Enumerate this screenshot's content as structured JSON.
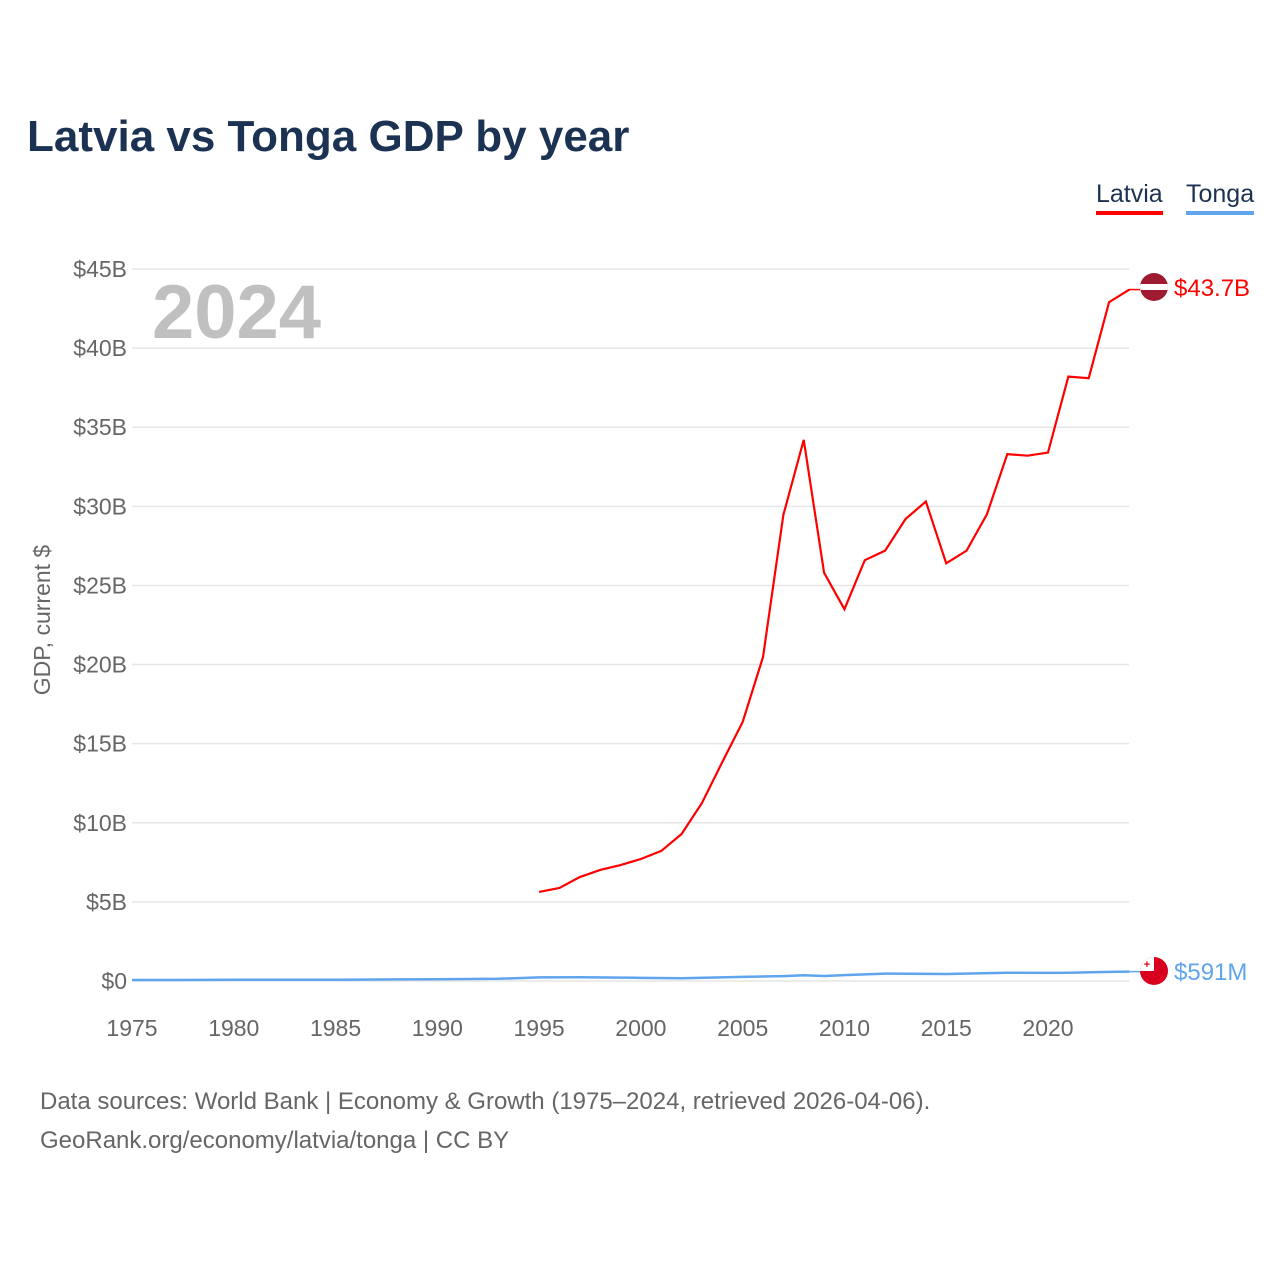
{
  "chart_data": {
    "type": "line",
    "title": "Latvia vs Tonga GDP by year",
    "ylabel": "GDP, current $",
    "xlabel": "",
    "xlim": [
      1975,
      2024
    ],
    "ylim": [
      0,
      45
    ],
    "y_units": "billion USD",
    "grid": true,
    "legend_placement": "top-right",
    "year_watermark": "2024",
    "x_ticks": [
      "1975",
      "1980",
      "1985",
      "1990",
      "1995",
      "2000",
      "2005",
      "2010",
      "2015",
      "2020"
    ],
    "y_ticks": [
      {
        "v": 0,
        "label": "$0"
      },
      {
        "v": 5,
        "label": "$5B"
      },
      {
        "v": 10,
        "label": "$10B"
      },
      {
        "v": 15,
        "label": "$15B"
      },
      {
        "v": 20,
        "label": "$20B"
      },
      {
        "v": 25,
        "label": "$25B"
      },
      {
        "v": 30,
        "label": "$30B"
      },
      {
        "v": 35,
        "label": "$35B"
      },
      {
        "v": 40,
        "label": "$40B"
      },
      {
        "v": 45,
        "label": "$45B"
      }
    ],
    "series": [
      {
        "name": "Latvia",
        "color": "#ff0000",
        "end_label": "$43.7B",
        "flag": "latvia-flag",
        "x": [
          1995,
          1996,
          1997,
          1998,
          1999,
          2000,
          2001,
          2002,
          2003,
          2004,
          2005,
          2006,
          2007,
          2008,
          2009,
          2010,
          2011,
          2012,
          2013,
          2014,
          2015,
          2016,
          2017,
          2018,
          2019,
          2020,
          2021,
          2022,
          2023,
          2024
        ],
        "values": [
          5.63,
          5.88,
          6.57,
          7.02,
          7.33,
          7.71,
          8.22,
          9.29,
          11.25,
          13.84,
          16.37,
          20.48,
          29.46,
          34.2,
          25.8,
          23.5,
          26.6,
          27.2,
          29.2,
          30.3,
          26.4,
          27.2,
          29.5,
          33.3,
          33.2,
          33.4,
          38.2,
          38.1,
          42.9,
          43.7
        ]
      },
      {
        "name": "Tonga",
        "color": "#5fa5ee",
        "end_label": "$591M",
        "flag": "tonga-flag",
        "x": [
          1975,
          1977,
          1980,
          1985,
          1988,
          1990,
          1993,
          1995,
          1997,
          2000,
          2002,
          2005,
          2007,
          2008,
          2009,
          2010,
          2012,
          2015,
          2018,
          2020,
          2021,
          2023,
          2024
        ],
        "values": [
          0.06,
          0.06,
          0.08,
          0.08,
          0.1,
          0.11,
          0.14,
          0.23,
          0.24,
          0.2,
          0.17,
          0.26,
          0.31,
          0.36,
          0.32,
          0.37,
          0.47,
          0.44,
          0.52,
          0.51,
          0.52,
          0.58,
          0.591
        ]
      }
    ]
  },
  "footer": {
    "line1": "Data sources: World Bank | Economy & Growth (1975–2024, retrieved 2026-04-06).",
    "line2": "GeoRank.org/economy/latvia/tonga | CC BY"
  }
}
